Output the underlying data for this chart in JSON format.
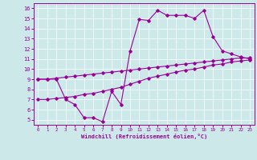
{
  "xlabel": "Windchill (Refroidissement éolien,°C)",
  "bg_color": "#cce8e8",
  "line_color": "#990099",
  "xlim": [
    -0.5,
    23.5
  ],
  "ylim": [
    4.5,
    16.5
  ],
  "xticks": [
    0,
    1,
    2,
    3,
    4,
    5,
    6,
    7,
    8,
    9,
    10,
    11,
    12,
    13,
    14,
    15,
    16,
    17,
    18,
    19,
    20,
    21,
    22,
    23
  ],
  "yticks": [
    5,
    6,
    7,
    8,
    9,
    10,
    11,
    12,
    13,
    14,
    15,
    16
  ],
  "series1_x": [
    0,
    1,
    2,
    3,
    4,
    5,
    6,
    7,
    8,
    9,
    10,
    11,
    12,
    13,
    14,
    15,
    16,
    17,
    18,
    19,
    20,
    21,
    22,
    23
  ],
  "series1_y": [
    9.0,
    9.0,
    9.0,
    7.0,
    6.5,
    5.2,
    5.2,
    4.8,
    7.8,
    6.5,
    11.8,
    14.9,
    14.8,
    15.8,
    15.3,
    15.3,
    15.3,
    15.0,
    15.8,
    13.2,
    11.8,
    11.5,
    11.2,
    11.0
  ],
  "series2_x": [
    0,
    1,
    2,
    3,
    4,
    5,
    6,
    7,
    8,
    9,
    10,
    11,
    12,
    13,
    14,
    15,
    16,
    17,
    18,
    19,
    20,
    21,
    22,
    23
  ],
  "series2_y": [
    9.0,
    9.0,
    9.1,
    9.2,
    9.3,
    9.4,
    9.5,
    9.6,
    9.7,
    9.8,
    9.9,
    10.0,
    10.1,
    10.2,
    10.3,
    10.4,
    10.5,
    10.6,
    10.7,
    10.8,
    10.9,
    11.0,
    11.1,
    11.1
  ],
  "series3_x": [
    0,
    1,
    2,
    3,
    4,
    5,
    6,
    7,
    8,
    9,
    10,
    11,
    12,
    13,
    14,
    15,
    16,
    17,
    18,
    19,
    20,
    21,
    22,
    23
  ],
  "series3_y": [
    7.0,
    7.0,
    7.1,
    7.2,
    7.3,
    7.5,
    7.6,
    7.8,
    8.0,
    8.2,
    8.5,
    8.8,
    9.1,
    9.3,
    9.5,
    9.7,
    9.9,
    10.0,
    10.2,
    10.4,
    10.5,
    10.7,
    10.8,
    10.9
  ]
}
